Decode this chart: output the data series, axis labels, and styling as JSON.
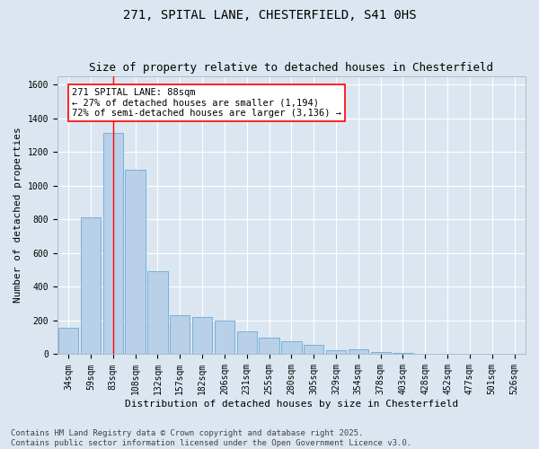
{
  "title_line1": "271, SPITAL LANE, CHESTERFIELD, S41 0HS",
  "title_line2": "Size of property relative to detached houses in Chesterfield",
  "xlabel": "Distribution of detached houses by size in Chesterfield",
  "ylabel": "Number of detached properties",
  "categories": [
    "34sqm",
    "59sqm",
    "83sqm",
    "108sqm",
    "132sqm",
    "157sqm",
    "182sqm",
    "206sqm",
    "231sqm",
    "255sqm",
    "280sqm",
    "305sqm",
    "329sqm",
    "354sqm",
    "378sqm",
    "403sqm",
    "428sqm",
    "452sqm",
    "477sqm",
    "501sqm",
    "526sqm"
  ],
  "values": [
    155,
    810,
    1310,
    1095,
    490,
    230,
    220,
    200,
    135,
    100,
    75,
    55,
    25,
    28,
    12,
    8,
    5,
    5,
    4,
    4,
    4
  ],
  "bar_color": "#b8d0e8",
  "bar_edge_color": "#6aaad4",
  "background_color": "#dce6f1",
  "grid_color": "#ffffff",
  "vline_x_index": 2,
  "vline_color": "red",
  "annotation_text": "271 SPITAL LANE: 88sqm\n← 27% of detached houses are smaller (1,194)\n72% of semi-detached houses are larger (3,136) →",
  "annotation_box_color": "red",
  "ylim": [
    0,
    1650
  ],
  "yticks": [
    0,
    200,
    400,
    600,
    800,
    1000,
    1200,
    1400,
    1600
  ],
  "footnote": "Contains HM Land Registry data © Crown copyright and database right 2025.\nContains public sector information licensed under the Open Government Licence v3.0.",
  "title_fontsize": 10,
  "subtitle_fontsize": 9,
  "axis_label_fontsize": 8,
  "tick_fontsize": 7,
  "annotation_fontsize": 7.5,
  "footnote_fontsize": 6.5
}
